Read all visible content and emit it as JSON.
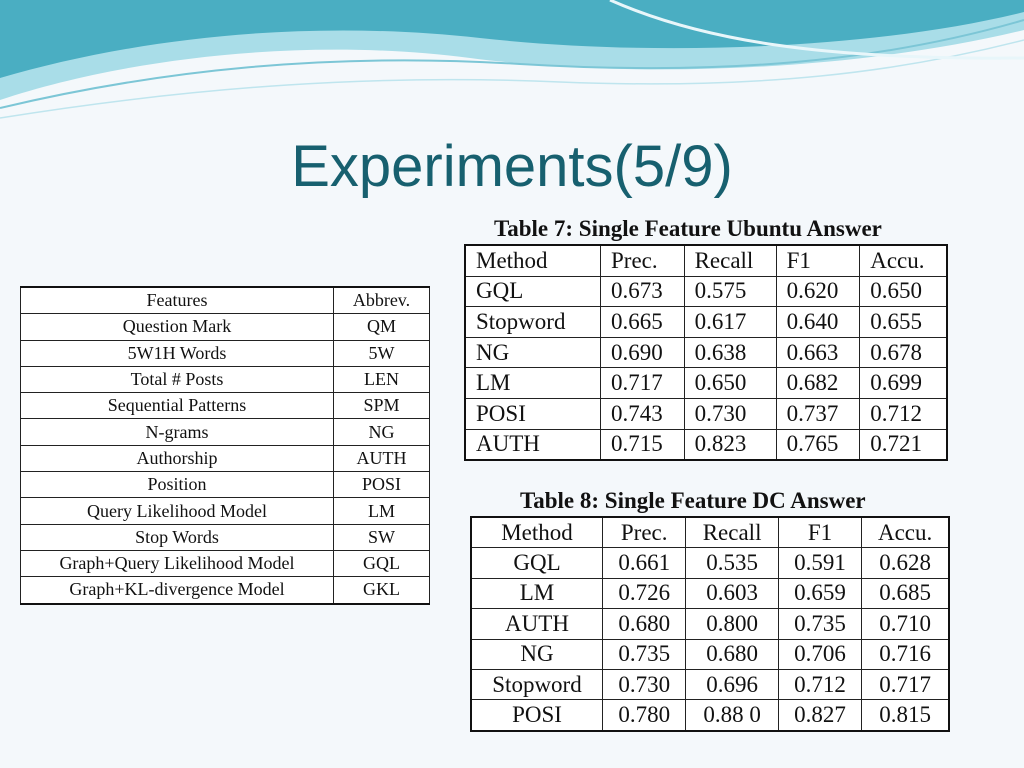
{
  "slide": {
    "title": "Experiments(5/9)",
    "colors": {
      "title": "#17606f",
      "wave_dark": "#4aaec2",
      "wave_light": "#a9dde8",
      "background": "#f4f8fb"
    }
  },
  "features_table": {
    "headers": [
      "Features",
      "Abbrev."
    ],
    "rows": [
      [
        "Question Mark",
        "QM"
      ],
      [
        "5W1H Words",
        "5W"
      ],
      [
        "Total # Posts",
        "LEN"
      ],
      [
        "Sequential Patterns",
        "SPM"
      ],
      [
        "N-grams",
        "NG"
      ],
      [
        "Authorship",
        "AUTH"
      ],
      [
        "Position",
        "POSI"
      ],
      [
        "Query Likelihood Model",
        "LM"
      ],
      [
        "Stop Words",
        "SW"
      ],
      [
        "Graph+Query Likelihood Model",
        "GQL"
      ],
      [
        "Graph+KL-divergence Model",
        "GKL"
      ]
    ]
  },
  "ubuntu_table": {
    "caption": "Table 7: Single Feature Ubuntu Answer",
    "headers": [
      "Method",
      "Prec.",
      "Recall",
      "F1",
      "Accu."
    ],
    "rows": [
      [
        "GQL",
        "0.673",
        "0.575",
        "0.620",
        "0.650"
      ],
      [
        "Stopword",
        "0.665",
        "0.617",
        "0.640",
        "0.655"
      ],
      [
        "NG",
        "0.690",
        "0.638",
        "0.663",
        "0.678"
      ],
      [
        "LM",
        "0.717",
        "0.650",
        "0.682",
        "0.699"
      ],
      [
        "POSI",
        "0.743",
        "0.730",
        "0.737",
        "0.712"
      ],
      [
        "AUTH",
        "0.715",
        "0.823",
        "0.765",
        "0.721"
      ]
    ]
  },
  "dc_table": {
    "caption": "Table 8: Single Feature DC Answer",
    "headers": [
      "Method",
      "Prec.",
      "Recall",
      "F1",
      "Accu."
    ],
    "rows": [
      [
        "GQL",
        "0.661",
        "0.535",
        "0.591",
        "0.628"
      ],
      [
        "LM",
        "0.726",
        "0.603",
        "0.659",
        "0.685"
      ],
      [
        "AUTH",
        "0.680",
        "0.800",
        "0.735",
        "0.710"
      ],
      [
        "NG",
        "0.735",
        "0.680",
        "0.706",
        "0.716"
      ],
      [
        "Stopword",
        "0.730",
        "0.696",
        "0.712",
        "0.717"
      ],
      [
        "POSI",
        "0.780",
        "0.88 0",
        "0.827",
        "0.815"
      ]
    ]
  }
}
